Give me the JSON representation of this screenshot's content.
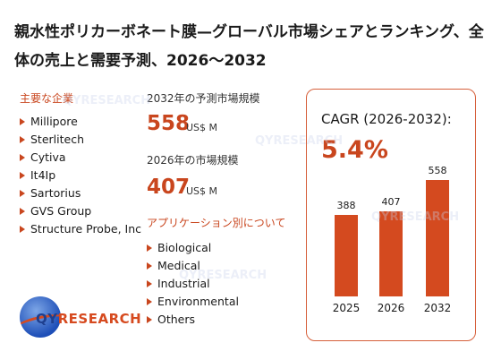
{
  "title": "親水性ポリカーボネート膜—グローバル市場シェアとランキング、全体の売上と需要予測、2026～2032",
  "companies_section": {
    "label": "主要な企業",
    "items": [
      "Millipore",
      "Sterlitech",
      "Cytiva",
      "It4Ip",
      "Sartorius",
      "GVS Group",
      "Structure Probe, Inc"
    ]
  },
  "forecast_2032": {
    "label": "2032年の予測市場規模",
    "value": "558",
    "unit": "US$ M"
  },
  "market_2026": {
    "label": "2026年の市場規模",
    "value": "407",
    "unit": "US$ M"
  },
  "applications_section": {
    "label": "アプリケーション別について",
    "items": [
      "Biological",
      "Medical",
      "Industrial",
      "Environmental",
      "Others"
    ]
  },
  "cagr": {
    "label": "CAGR (2026-2032):",
    "value": "5.4%"
  },
  "chart_data": {
    "type": "bar",
    "categories": [
      "2025",
      "2026",
      "2032"
    ],
    "values": [
      388,
      407,
      558
    ],
    "data_labels": [
      "388",
      "407",
      "558"
    ],
    "ylim": [
      0,
      600
    ],
    "grid": false,
    "bar_color": "#d44a1f"
  },
  "logo": {
    "prefix": "QY",
    "suffix": "RESEARCH"
  },
  "colors": {
    "accent": "#c9461e",
    "panel_border": "#d6603b",
    "logo_blue": "#1e3f8f"
  }
}
